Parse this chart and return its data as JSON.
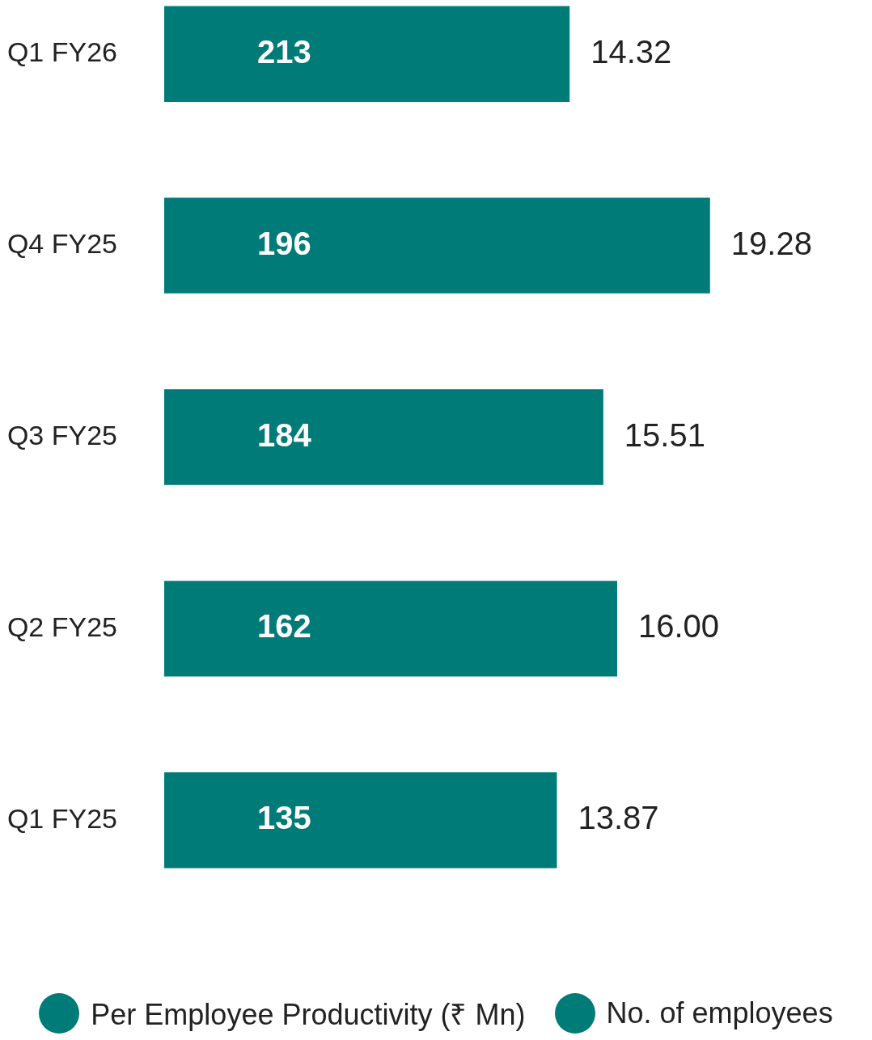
{
  "chart_data": {
    "type": "bar",
    "orientation": "horizontal",
    "categories": [
      "Q1 FY26",
      "Q4 FY25",
      "Q3 FY25",
      "Q2 FY25",
      "Q1 FY25"
    ],
    "tick_labels": "y",
    "legend": "bottom",
    "data_labels": true,
    "series": [
      {
        "name": "Per Employee Productivity (₹ Mn)",
        "color": "#007b78",
        "values": [
          14.32,
          19.28,
          15.51,
          16.0,
          13.87
        ],
        "value_labels": [
          "14.32",
          "19.28",
          "15.51",
          "16.00",
          "13.87"
        ]
      }
    ],
    "annotations": [
      "213",
      "196",
      "184",
      "162",
      "135",
      "No. of employees"
    ]
  }
}
